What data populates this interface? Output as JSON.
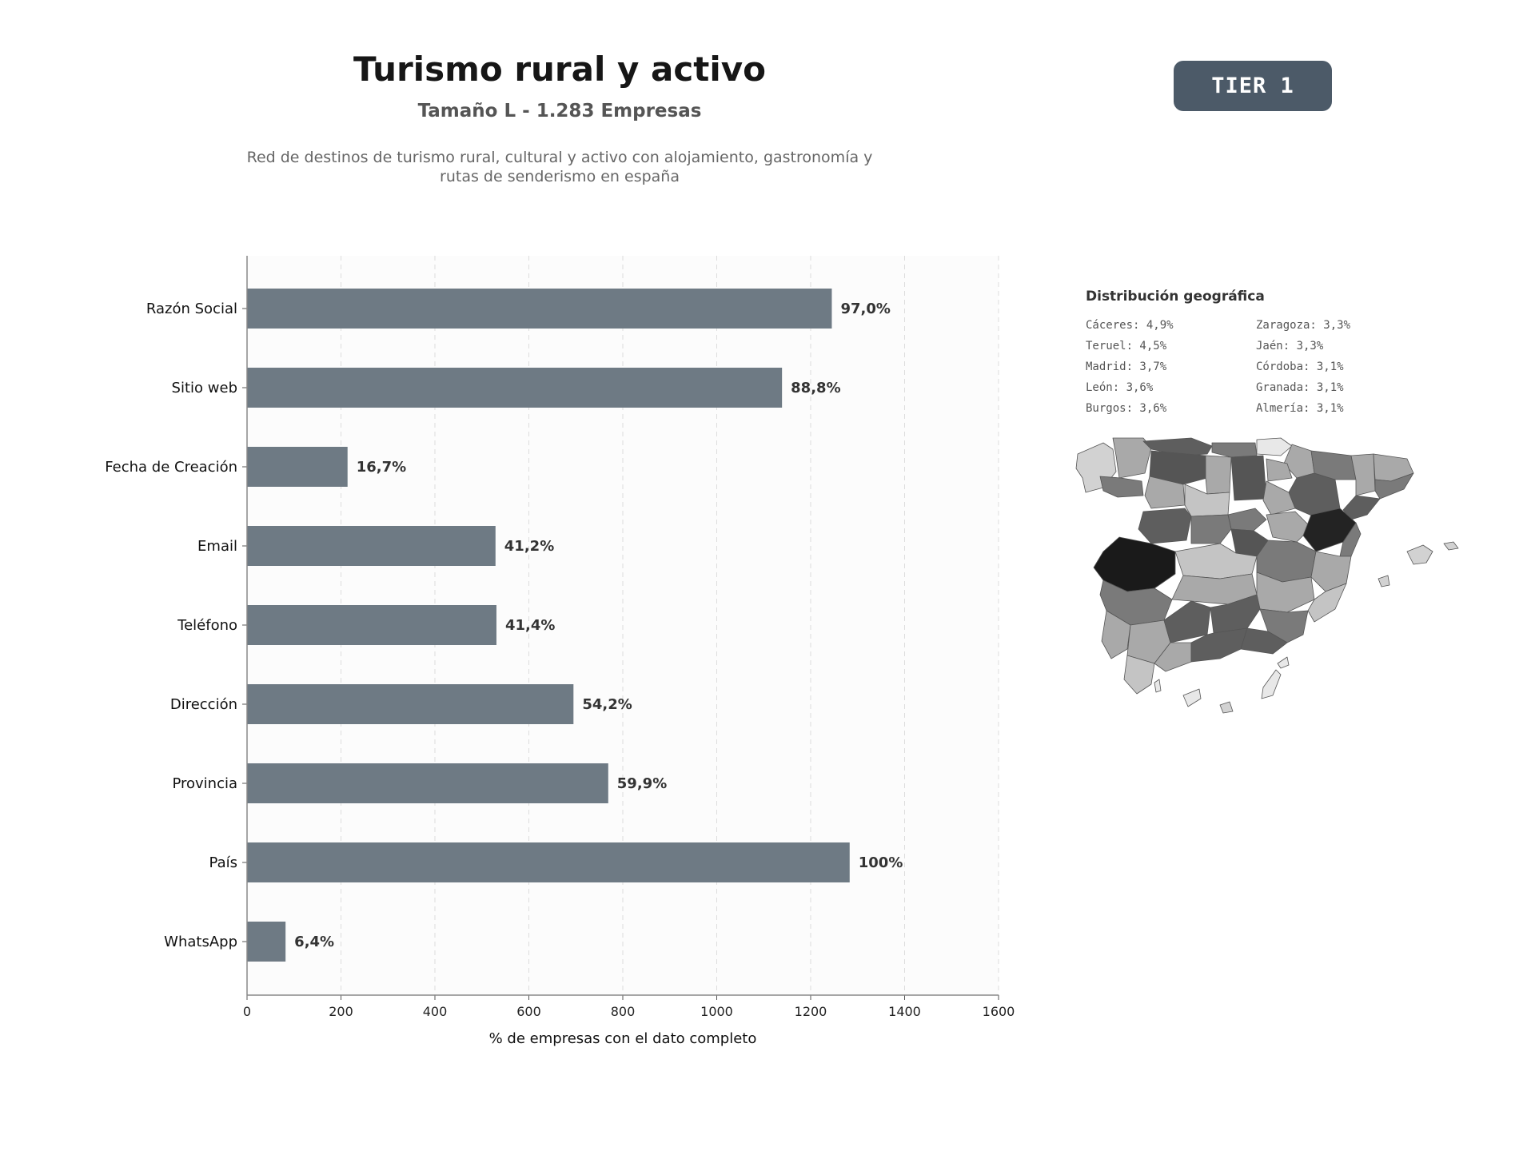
{
  "header": {
    "title": "Turismo rural y activo",
    "subtitle": "Tamaño L - 1.283 Empresas",
    "description": "Red de destinos de turismo rural, cultural y activo con alojamiento, gastronomía y rutas de senderismo en españa",
    "tier_label": "TIER 1"
  },
  "chart_data": {
    "type": "bar",
    "orientation": "horizontal",
    "categories": [
      "Razón Social",
      "Sitio web",
      "Fecha de Creación",
      "Email",
      "Teléfono",
      "Dirección",
      "Provincia",
      "País",
      "WhatsApp"
    ],
    "values": [
      1245,
      1139,
      214,
      529,
      531,
      695,
      769,
      1283,
      82
    ],
    "value_labels": [
      "97,0%",
      "88,8%",
      "16,7%",
      "41,2%",
      "41,4%",
      "54,2%",
      "59,9%",
      "100%",
      "6,4%"
    ],
    "xlabel": "% de empresas con el dato completo",
    "ylabel": "",
    "xlim": [
      0,
      1600
    ],
    "xticks": [
      0,
      200,
      400,
      600,
      800,
      1000,
      1200,
      1400,
      1600
    ],
    "grid": true,
    "bar_color": "#6e7a84"
  },
  "geo": {
    "title": "Distribución geográfica",
    "items": [
      "Cáceres: 4,9%",
      "Zaragoza: 3,3%",
      "Teruel: 4,5%",
      "Jaén: 3,3%",
      "Madrid: 3,7%",
      "Córdoba: 3,1%",
      "León: 3,6%",
      "Granada: 3,1%",
      "Burgos: 3,6%",
      "Almería: 3,1%"
    ]
  }
}
